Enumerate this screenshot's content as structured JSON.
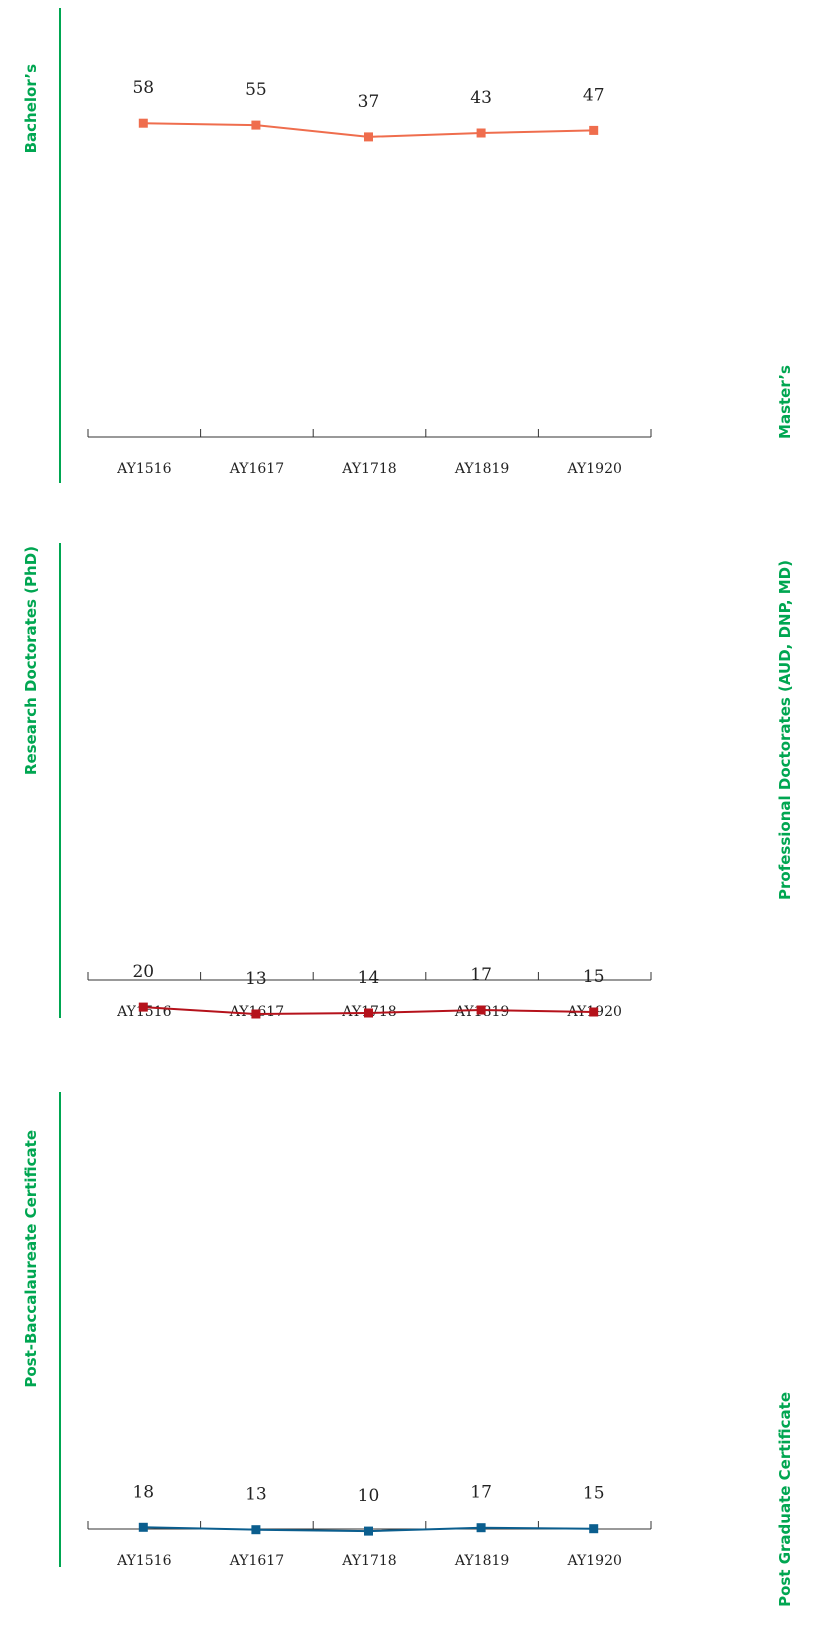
{
  "chart_data": [
    {
      "type": "line",
      "title": "Bachelor’s",
      "categories": [
        "AY1516",
        "AY1617",
        "AY1718",
        "AY1819",
        "AY1920"
      ],
      "series": [
        {
          "values": [
            58,
            55,
            37,
            43,
            47
          ],
          "color": "#ef6d4d"
        }
      ]
    },
    {
      "type": "line",
      "title": "Master’s",
      "categories": [],
      "series": []
    },
    {
      "type": "line",
      "title": "Research Doctorates (PhD)",
      "categories": [
        "AY1516",
        "AY1617",
        "AY1718",
        "AY1819",
        "AY1920"
      ],
      "series": [
        {
          "values": [
            20,
            13,
            14,
            17,
            15
          ],
          "color": "#b5121b"
        }
      ]
    },
    {
      "type": "line",
      "title": "Professional Doctorates (AUD, DNP, MD)",
      "categories": [],
      "series": []
    },
    {
      "type": "line",
      "title": "Post-Baccalaureate Certificate",
      "categories": [
        "AY1516",
        "AY1617",
        "AY1718",
        "AY1819",
        "AY1920"
      ],
      "series": [
        {
          "values": [
            18,
            13,
            10,
            17,
            15
          ],
          "color": "#0b5e8e"
        }
      ]
    },
    {
      "type": "line",
      "title": "Post Graduate Certificate",
      "categories": [],
      "series": []
    }
  ]
}
